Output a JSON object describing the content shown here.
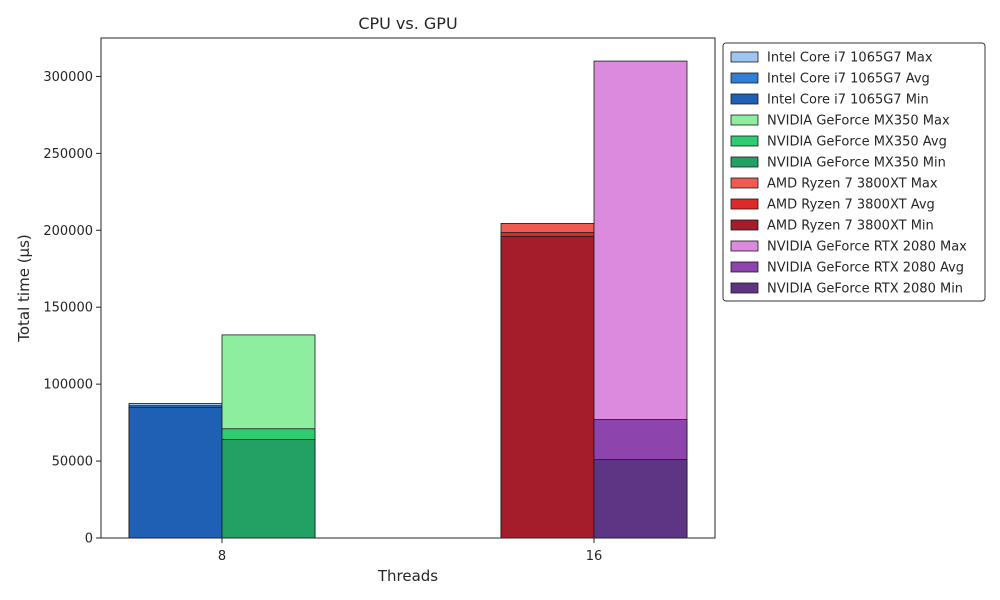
{
  "chart_data": {
    "type": "bar",
    "title": "CPU vs. GPU",
    "xlabel": "Threads",
    "ylabel": "Total time (µs)",
    "categories": [
      "8",
      "16"
    ],
    "ylim": [
      0,
      325000
    ],
    "yticks": [
      0,
      50000,
      100000,
      150000,
      200000,
      250000,
      300000
    ],
    "ytick_labels": [
      "0",
      "50000",
      "100000",
      "150000",
      "200000",
      "250000",
      "300000"
    ],
    "grid": false,
    "legend_position": "outside-right",
    "bar_mode": "overlapping max/avg/min per device",
    "series": [
      {
        "name": "Intel Core i7 1065G7 Max",
        "category": "8",
        "slot": 0,
        "value": 87500,
        "color": "#9ec4f0"
      },
      {
        "name": "Intel Core i7 1065G7 Avg",
        "category": "8",
        "slot": 0,
        "value": 86000,
        "color": "#2f7fd8"
      },
      {
        "name": "Intel Core i7 1065G7 Min",
        "category": "8",
        "slot": 0,
        "value": 85000,
        "color": "#1f5fb4"
      },
      {
        "name": "NVIDIA GeForce MX350 Max",
        "category": "8",
        "slot": 1,
        "value": 132000,
        "color": "#8eeea0"
      },
      {
        "name": "NVIDIA GeForce MX350 Avg",
        "category": "8",
        "slot": 1,
        "value": 71000,
        "color": "#2ecc71"
      },
      {
        "name": "NVIDIA GeForce MX350 Min",
        "category": "8",
        "slot": 1,
        "value": 64000,
        "color": "#23a063"
      },
      {
        "name": "AMD Ryzen 7 3800XT Max",
        "category": "16",
        "slot": 0,
        "value": 204500,
        "color": "#f05a50"
      },
      {
        "name": "AMD Ryzen 7 3800XT Avg",
        "category": "16",
        "slot": 0,
        "value": 198500,
        "color": "#dc2a2a"
      },
      {
        "name": "AMD Ryzen 7 3800XT Min",
        "category": "16",
        "slot": 0,
        "value": 196000,
        "color": "#a51c2b"
      },
      {
        "name": "NVIDIA GeForce RTX 2080 Max",
        "category": "16",
        "slot": 1,
        "value": 310000,
        "color": "#dc8ade"
      },
      {
        "name": "NVIDIA GeForce RTX 2080 Avg",
        "category": "16",
        "slot": 1,
        "value": 77000,
        "color": "#8e44ad"
      },
      {
        "name": "NVIDIA GeForce RTX 2080 Min",
        "category": "16",
        "slot": 1,
        "value": 51000,
        "color": "#5e3585"
      }
    ]
  }
}
